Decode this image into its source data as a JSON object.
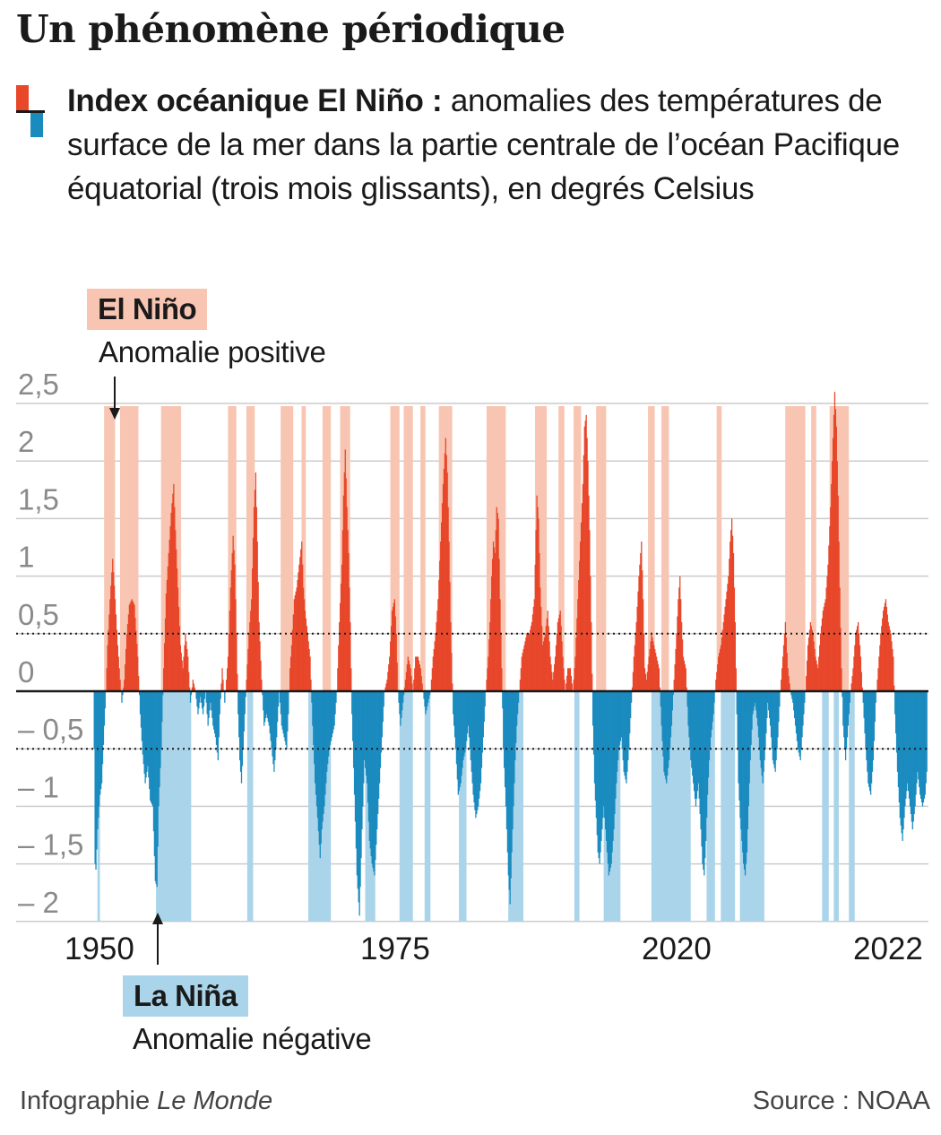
{
  "title": "Un phénomène périodique",
  "subtitle": {
    "bold": "Index océanique El Niño :",
    "text": "anomalies des températures de surface de la mer dans la partie centrale de l’océan Pacifique équatorial (trois mois glissants), en degrés Celsius"
  },
  "colors": {
    "positive": "#e8472a",
    "negative": "#1a8bbf",
    "positive_band": "#f7c5b1",
    "negative_band": "#a9d4ea",
    "grid": "#cccccc",
    "axis": "#1a1a1a",
    "tick_text": "#8a8a8a"
  },
  "el_nino": {
    "label": "El Niño",
    "desc": "Anomalie positive"
  },
  "la_nina": {
    "label": "La Niña",
    "desc": "Anomalie négative"
  },
  "footer": {
    "left_prefix": "Infographie ",
    "left_italic": "Le Monde",
    "right": "Source : NOAA"
  },
  "chart_data": {
    "type": "bar",
    "xlabel": "",
    "ylabel": "",
    "ylim": [
      -2.0,
      2.5
    ],
    "yticks": [
      {
        "v": 2.5,
        "label": "2,5"
      },
      {
        "v": 2,
        "label": "2"
      },
      {
        "v": 1.5,
        "label": "1,5"
      },
      {
        "v": 1,
        "label": "1"
      },
      {
        "v": 0.5,
        "label": "0,5"
      },
      {
        "v": 0,
        "label": "0"
      },
      {
        "v": -0.5,
        "label": "– 0,5"
      },
      {
        "v": -1,
        "label": "– 1"
      },
      {
        "v": -1.5,
        "label": "– 1,5"
      },
      {
        "v": -2,
        "label": "– 2"
      }
    ],
    "xticks": [
      "1950",
      "1975",
      "2020",
      "2022"
    ],
    "thresholds": [
      0.5,
      -0.5
    ],
    "grid": true,
    "anomaly_keypoints": [
      [
        0,
        -0.5
      ],
      [
        1,
        -1.5
      ],
      [
        2,
        -1.55
      ],
      [
        4,
        -1.2
      ],
      [
        7,
        -0.9
      ],
      [
        9,
        -0.8
      ],
      [
        12,
        -0.3
      ],
      [
        14,
        0
      ],
      [
        16,
        0.4
      ],
      [
        19,
        0.8
      ],
      [
        22,
        1.15
      ],
      [
        25,
        0.8
      ],
      [
        28,
        0.4
      ],
      [
        31,
        0.1
      ],
      [
        33,
        -0.1
      ],
      [
        36,
        0.1
      ],
      [
        39,
        0.5
      ],
      [
        42,
        0.75
      ],
      [
        45,
        0.8
      ],
      [
        48,
        0.75
      ],
      [
        52,
        0.3
      ],
      [
        55,
        -0.2
      ],
      [
        58,
        -0.55
      ],
      [
        61,
        -0.8
      ],
      [
        64,
        -0.65
      ],
      [
        67,
        -0.95
      ],
      [
        70,
        -1.0
      ],
      [
        73,
        -1.65
      ],
      [
        75,
        -1.7
      ],
      [
        77,
        -1.0
      ],
      [
        80,
        -0.5
      ],
      [
        83,
        0.2
      ],
      [
        86,
        0.85
      ],
      [
        89,
        1.2
      ],
      [
        92,
        1.55
      ],
      [
        95,
        1.8
      ],
      [
        97,
        1.4
      ],
      [
        100,
        0.9
      ],
      [
        103,
        0.4
      ],
      [
        106,
        0.2
      ],
      [
        109,
        0.5
      ],
      [
        112,
        0.3
      ],
      [
        115,
        -0.1
      ],
      [
        118,
        0.1
      ],
      [
        121,
        0.0
      ],
      [
        124,
        -0.2
      ],
      [
        127,
        -0.05
      ],
      [
        130,
        -0.2
      ],
      [
        133,
        0.0
      ],
      [
        136,
        -0.3
      ],
      [
        139,
        -0.1
      ],
      [
        142,
        -0.3
      ],
      [
        145,
        -0.4
      ],
      [
        148,
        -0.6
      ],
      [
        150,
        -0.2
      ],
      [
        153,
        0.2
      ],
      [
        156,
        -0.1
      ],
      [
        160,
        0.3
      ],
      [
        163,
        0.9
      ],
      [
        166,
        1.35
      ],
      [
        168,
        1.1
      ],
      [
        170,
        0.5
      ],
      [
        172,
        -0.2
      ],
      [
        174,
        -0.6
      ],
      [
        176,
        -0.8
      ],
      [
        178,
        -0.5
      ],
      [
        180,
        -0.2
      ],
      [
        182,
        0.1
      ],
      [
        185,
        0.5
      ],
      [
        188,
        0.8
      ],
      [
        191,
        1.6
      ],
      [
        193,
        1.9
      ],
      [
        195,
        1.3
      ],
      [
        197,
        0.6
      ],
      [
        200,
        0.1
      ],
      [
        203,
        -0.3
      ],
      [
        206,
        -0.2
      ],
      [
        209,
        -0.3
      ],
      [
        212,
        -0.5
      ],
      [
        215,
        -0.7
      ],
      [
        218,
        -0.4
      ],
      [
        221,
        0.0
      ],
      [
        224,
        -0.3
      ],
      [
        227,
        -0.4
      ],
      [
        230,
        -0.5
      ],
      [
        232,
        -0.2
      ],
      [
        234,
        0.2
      ],
      [
        236,
        0.4
      ],
      [
        239,
        0.8
      ],
      [
        242,
        0.9
      ],
      [
        245,
        1.1
      ],
      [
        248,
        1.3
      ],
      [
        250,
        0.9
      ],
      [
        252,
        0.7
      ],
      [
        255,
        0.5
      ],
      [
        258,
        0.3
      ],
      [
        261,
        -0.3
      ],
      [
        264,
        -0.8
      ],
      [
        267,
        -1.1
      ],
      [
        270,
        -1.45
      ],
      [
        272,
        -1.2
      ],
      [
        275,
        -1.0
      ],
      [
        278,
        -0.7
      ],
      [
        281,
        -0.5
      ],
      [
        284,
        -0.4
      ],
      [
        287,
        -0.3
      ],
      [
        290,
        0.0
      ],
      [
        293,
        0.6
      ],
      [
        296,
        1.1
      ],
      [
        298,
        1.7
      ],
      [
        300,
        2.1
      ],
      [
        302,
        1.6
      ],
      [
        304,
        1.2
      ],
      [
        306,
        0.6
      ],
      [
        308,
        -0.2
      ],
      [
        311,
        -0.9
      ],
      [
        314,
        -1.6
      ],
      [
        317,
        -1.95
      ],
      [
        320,
        -1.2
      ],
      [
        323,
        -0.6
      ],
      [
        326,
        -0.8
      ],
      [
        329,
        -1.3
      ],
      [
        332,
        -1.5
      ],
      [
        335,
        -1.6
      ],
      [
        338,
        -1.2
      ],
      [
        341,
        -0.8
      ],
      [
        344,
        -0.4
      ],
      [
        347,
        0.0
      ],
      [
        350,
        0.1
      ],
      [
        353,
        0.3
      ],
      [
        356,
        0.7
      ],
      [
        359,
        0.8
      ],
      [
        361,
        0.5
      ],
      [
        363,
        0.0
      ],
      [
        366,
        -0.3
      ],
      [
        369,
        -0.1
      ],
      [
        372,
        0.1
      ],
      [
        375,
        0.3
      ],
      [
        378,
        0.2
      ],
      [
        381,
        0.0
      ],
      [
        384,
        0.3
      ],
      [
        387,
        0.3
      ],
      [
        390,
        0.2
      ],
      [
        393,
        0.0
      ],
      [
        396,
        -0.2
      ],
      [
        399,
        -0.1
      ],
      [
        402,
        0.0
      ],
      [
        405,
        0.3
      ],
      [
        408,
        0.5
      ],
      [
        411,
        0.8
      ],
      [
        414,
        1.3
      ],
      [
        417,
        1.8
      ],
      [
        420,
        2.2
      ],
      [
        422,
        1.9
      ],
      [
        424,
        1.3
      ],
      [
        426,
        0.6
      ],
      [
        429,
        -0.2
      ],
      [
        432,
        -0.5
      ],
      [
        435,
        -0.9
      ],
      [
        438,
        -0.8
      ],
      [
        441,
        -0.6
      ],
      [
        444,
        -0.5
      ],
      [
        447,
        -0.3
      ],
      [
        450,
        -0.6
      ],
      [
        453,
        -0.9
      ],
      [
        456,
        -1.1
      ],
      [
        459,
        -1.0
      ],
      [
        462,
        -0.8
      ],
      [
        465,
        -0.4
      ],
      [
        468,
        0.0
      ],
      [
        471,
        0.3
      ],
      [
        473,
        0.6
      ],
      [
        475,
        1.0
      ],
      [
        477,
        1.3
      ],
      [
        479,
        1.2
      ],
      [
        481,
        1.6
      ],
      [
        483,
        1.5
      ],
      [
        485,
        0.8
      ],
      [
        487,
        0.2
      ],
      [
        489,
        -0.5
      ],
      [
        492,
        -1.0
      ],
      [
        495,
        -1.6
      ],
      [
        497,
        -1.85
      ],
      [
        499,
        -1.4
      ],
      [
        501,
        -1.0
      ],
      [
        503,
        -0.6
      ],
      [
        505,
        -0.3
      ],
      [
        508,
        0.0
      ],
      [
        511,
        0.3
      ],
      [
        514,
        0.4
      ],
      [
        517,
        0.5
      ],
      [
        520,
        0.5
      ],
      [
        523,
        0.6
      ],
      [
        526,
        0.8
      ],
      [
        529,
        1.7
      ],
      [
        531,
        1.5
      ],
      [
        533,
        0.9
      ],
      [
        536,
        0.4
      ],
      [
        539,
        0.5
      ],
      [
        542,
        0.7
      ],
      [
        545,
        0.3
      ],
      [
        548,
        0.1
      ],
      [
        551,
        0.3
      ],
      [
        554,
        0.6
      ],
      [
        557,
        0.7
      ],
      [
        560,
        0.3
      ],
      [
        563,
        0.0
      ],
      [
        566,
        0.2
      ],
      [
        569,
        0.2
      ],
      [
        572,
        0.0
      ],
      [
        575,
        0.3
      ],
      [
        578,
        0.8
      ],
      [
        581,
        1.3
      ],
      [
        584,
        1.8
      ],
      [
        586,
        2.3
      ],
      [
        588,
        2.4
      ],
      [
        590,
        2.0
      ],
      [
        592,
        1.4
      ],
      [
        594,
        0.6
      ],
      [
        596,
        -0.3
      ],
      [
        598,
        -0.8
      ],
      [
        600,
        -1.1
      ],
      [
        602,
        -1.4
      ],
      [
        604,
        -1.5
      ],
      [
        606,
        -1.3
      ],
      [
        609,
        -1.0
      ],
      [
        612,
        -1.3
      ],
      [
        615,
        -1.6
      ],
      [
        618,
        -1.5
      ],
      [
        621,
        -1.2
      ],
      [
        624,
        -0.8
      ],
      [
        627,
        -0.5
      ],
      [
        630,
        -0.4
      ],
      [
        633,
        -0.7
      ],
      [
        636,
        -0.8
      ],
      [
        639,
        -0.5
      ],
      [
        642,
        -0.1
      ],
      [
        645,
        0.3
      ],
      [
        648,
        0.6
      ],
      [
        651,
        1.0
      ],
      [
        654,
        1.3
      ],
      [
        656,
        0.8
      ],
      [
        658,
        0.2
      ],
      [
        660,
        0.1
      ],
      [
        663,
        0.3
      ],
      [
        666,
        0.5
      ],
      [
        669,
        0.4
      ],
      [
        672,
        0.3
      ],
      [
        675,
        0.2
      ],
      [
        678,
        -0.3
      ],
      [
        681,
        -0.7
      ],
      [
        684,
        -0.8
      ],
      [
        687,
        -0.6
      ],
      [
        690,
        -0.3
      ],
      [
        693,
        0.1
      ],
      [
        696,
        0.5
      ],
      [
        698,
        0.8
      ],
      [
        700,
        1.0
      ],
      [
        702,
        0.6
      ],
      [
        704,
        0.3
      ],
      [
        707,
        0.2
      ],
      [
        710,
        -0.3
      ],
      [
        713,
        -0.6
      ],
      [
        716,
        -0.8
      ],
      [
        719,
        -1.0
      ],
      [
        722,
        -0.8
      ],
      [
        725,
        -1.2
      ],
      [
        727,
        -1.5
      ],
      [
        729,
        -1.6
      ],
      [
        731,
        -1.3
      ],
      [
        733,
        -0.9
      ],
      [
        735,
        -0.6
      ],
      [
        737,
        -0.4
      ],
      [
        740,
        -0.2
      ],
      [
        743,
        0.1
      ],
      [
        746,
        0.3
      ],
      [
        749,
        0.4
      ],
      [
        752,
        0.6
      ],
      [
        755,
        0.8
      ],
      [
        758,
        1.0
      ],
      [
        760,
        1.3
      ],
      [
        762,
        1.5
      ],
      [
        764,
        1.2
      ],
      [
        766,
        0.6
      ],
      [
        768,
        -0.2
      ],
      [
        770,
        -0.8
      ],
      [
        772,
        -1.1
      ],
      [
        774,
        -1.3
      ],
      [
        776,
        -1.5
      ],
      [
        778,
        -1.6
      ],
      [
        780,
        -1.4
      ],
      [
        782,
        -1.0
      ],
      [
        784,
        -0.6
      ],
      [
        787,
        -0.2
      ],
      [
        790,
        -0.1
      ],
      [
        793,
        -0.3
      ],
      [
        796,
        -0.6
      ],
      [
        799,
        -0.8
      ],
      [
        802,
        -0.5
      ],
      [
        805,
        -0.1
      ],
      [
        808,
        -0.3
      ],
      [
        811,
        -0.6
      ],
      [
        814,
        -0.7
      ],
      [
        817,
        -0.4
      ],
      [
        820,
        0.0
      ],
      [
        823,
        0.3
      ],
      [
        826,
        0.6
      ],
      [
        829,
        0.2
      ],
      [
        832,
        0.0
      ],
      [
        835,
        -0.1
      ],
      [
        838,
        -0.3
      ],
      [
        841,
        -0.5
      ],
      [
        844,
        -0.6
      ],
      [
        847,
        -0.3
      ],
      [
        850,
        0.0
      ],
      [
        853,
        0.4
      ],
      [
        856,
        0.6
      ],
      [
        859,
        0.5
      ],
      [
        862,
        0.3
      ],
      [
        865,
        0.2
      ],
      [
        868,
        0.5
      ],
      [
        871,
        0.7
      ],
      [
        874,
        0.8
      ],
      [
        877,
        1.1
      ],
      [
        880,
        1.6
      ],
      [
        883,
        2.2
      ],
      [
        885,
        2.6
      ],
      [
        887,
        2.3
      ],
      [
        889,
        1.7
      ],
      [
        891,
        0.9
      ],
      [
        893,
        0.2
      ],
      [
        895,
        -0.3
      ],
      [
        898,
        -0.6
      ],
      [
        901,
        -0.3
      ],
      [
        904,
        0.0
      ],
      [
        907,
        0.2
      ],
      [
        910,
        0.5
      ],
      [
        913,
        0.6
      ],
      [
        916,
        0.3
      ],
      [
        919,
        -0.1
      ],
      [
        922,
        -0.5
      ],
      [
        925,
        -0.8
      ],
      [
        928,
        -0.9
      ],
      [
        931,
        -0.6
      ],
      [
        934,
        -0.1
      ],
      [
        937,
        0.2
      ],
      [
        940,
        0.5
      ],
      [
        943,
        0.7
      ],
      [
        946,
        0.8
      ],
      [
        949,
        0.6
      ],
      [
        952,
        0.5
      ],
      [
        955,
        0.3
      ],
      [
        957,
        -0.2
      ],
      [
        960,
        -0.7
      ],
      [
        963,
        -1.1
      ],
      [
        966,
        -1.3
      ],
      [
        969,
        -1.0
      ],
      [
        972,
        -0.8
      ],
      [
        975,
        -1.0
      ],
      [
        978,
        -1.2
      ],
      [
        981,
        -1.0
      ],
      [
        984,
        -0.7
      ],
      [
        987,
        -0.9
      ],
      [
        990,
        -1.0
      ],
      [
        993,
        -0.9
      ],
      [
        995,
        -0.7
      ]
    ],
    "el_nino_periods": [
      [
        12,
        25
      ],
      [
        31,
        53
      ],
      [
        80,
        104
      ],
      [
        160,
        170
      ],
      [
        182,
        192
      ],
      [
        223,
        238
      ],
      [
        248,
        253
      ],
      [
        273,
        283
      ],
      [
        294,
        306
      ],
      [
        354,
        365
      ],
      [
        370,
        381
      ],
      [
        390,
        396
      ],
      [
        412,
        428
      ],
      [
        469,
        492
      ],
      [
        527,
        541
      ],
      [
        555,
        562
      ],
      [
        573,
        582
      ],
      [
        600,
        612
      ],
      [
        662,
        670
      ],
      [
        678,
        687
      ],
      [
        744,
        750
      ],
      [
        826,
        850
      ],
      [
        857,
        863
      ],
      [
        879,
        902
      ]
    ],
    "la_nina_periods": [
      [
        4,
        7
      ],
      [
        74,
        116
      ],
      [
        183,
        190
      ],
      [
        256,
        283
      ],
      [
        324,
        336
      ],
      [
        365,
        381
      ],
      [
        395,
        402
      ],
      [
        436,
        445
      ],
      [
        495,
        513
      ],
      [
        574,
        580
      ],
      [
        609,
        629
      ],
      [
        666,
        713
      ],
      [
        732,
        742
      ],
      [
        749,
        766
      ],
      [
        772,
        783
      ],
      [
        786,
        788
      ],
      [
        772,
        801
      ],
      [
        870,
        878
      ],
      [
        884,
        890
      ],
      [
        902,
        909
      ]
    ]
  }
}
